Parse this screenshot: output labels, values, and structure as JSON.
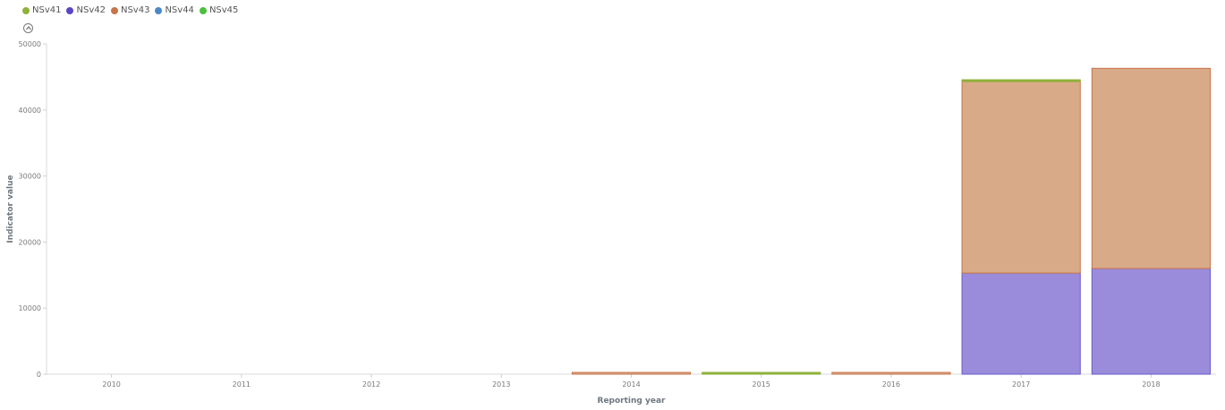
{
  "legend": [
    {
      "label": "NSv41",
      "color": "#8fb13a"
    },
    {
      "label": "NSv42",
      "color": "#5b45c5"
    },
    {
      "label": "NSv43",
      "color": "#c8744a"
    },
    {
      "label": "NSv44",
      "color": "#4a88c6"
    },
    {
      "label": "NSv45",
      "color": "#4cbf3c"
    }
  ],
  "chart_data": {
    "type": "bar",
    "stacked": true,
    "xlabel": "Reporting year",
    "ylabel": "Indicator value",
    "categories": [
      "2010",
      "2011",
      "2012",
      "2013",
      "2014",
      "2015",
      "2016",
      "2017",
      "2018"
    ],
    "ylim": [
      0,
      50000
    ],
    "yticks": [
      0,
      10000,
      20000,
      30000,
      40000,
      50000
    ],
    "grid": false,
    "legend_position": "top-left",
    "series": [
      {
        "name": "NSv42",
        "color": "#9a8cdb",
        "stroke": "#6a5acd",
        "values": [
          0,
          0,
          0,
          0,
          0,
          0,
          0,
          15300,
          16000
        ]
      },
      {
        "name": "NSv43",
        "color": "#d8aa88",
        "stroke": "#c8744a",
        "values": [
          0,
          0,
          0,
          0,
          150,
          0,
          250,
          29000,
          30300
        ]
      },
      {
        "name": "NSv41",
        "color": "#8fb13a",
        "stroke": "#8fb13a",
        "values": [
          0,
          0,
          0,
          0,
          0,
          250,
          0,
          200,
          0
        ]
      }
    ]
  }
}
